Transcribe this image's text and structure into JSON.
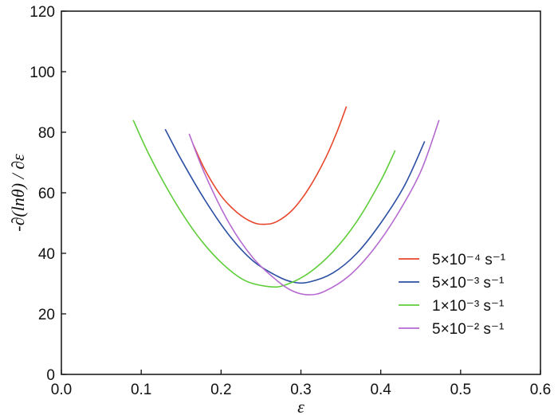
{
  "chart_data": {
    "type": "line",
    "title": "",
    "xlabel": "ε",
    "ylabel": "-∂(lnθ) / ∂ε",
    "xlim": [
      0.0,
      0.6
    ],
    "ylim": [
      0,
      120
    ],
    "xticks": [
      0.0,
      0.1,
      0.2,
      0.3,
      0.4,
      0.5,
      0.6
    ],
    "xtick_labels": [
      "0.0",
      "0.1",
      "0.2",
      "0.3",
      "0.4",
      "0.5",
      "0.6"
    ],
    "yticks": [
      0,
      20,
      40,
      60,
      80,
      100,
      120
    ],
    "ytick_labels": [
      "0",
      "20",
      "40",
      "60",
      "80",
      "100",
      "120"
    ],
    "grid": false,
    "legend_position": "right-middle",
    "series": [
      {
        "name": "5×10⁻⁴ s⁻¹",
        "color": "#e8452c",
        "x": [
          0.165,
          0.18,
          0.2,
          0.22,
          0.24,
          0.255,
          0.27,
          0.29,
          0.31,
          0.33,
          0.345,
          0.357
        ],
        "y": [
          76.0,
          67.5,
          59.0,
          53.5,
          50.2,
          49.6,
          50.5,
          54.5,
          61.5,
          71.0,
          80.0,
          88.5
        ]
      },
      {
        "name": "5×10⁻³ s⁻¹",
        "color": "#2b4fa2",
        "x": [
          0.13,
          0.15,
          0.18,
          0.21,
          0.24,
          0.27,
          0.29,
          0.31,
          0.34,
          0.37,
          0.4,
          0.43,
          0.455
        ],
        "y": [
          81.0,
          71.0,
          57.5,
          46.0,
          37.5,
          32.5,
          30.5,
          30.5,
          33.5,
          40.0,
          50.0,
          62.5,
          77.0
        ]
      },
      {
        "name": "1×10⁻³ s⁻¹",
        "color": "#5fcd3a",
        "x": [
          0.09,
          0.11,
          0.14,
          0.17,
          0.2,
          0.23,
          0.26,
          0.28,
          0.31,
          0.34,
          0.37,
          0.4,
          0.418
        ],
        "y": [
          84.0,
          72.5,
          58.0,
          46.0,
          37.0,
          31.0,
          29.0,
          29.5,
          33.5,
          40.5,
          50.5,
          64.0,
          74.0
        ]
      },
      {
        "name": "5×10⁻² s⁻¹",
        "color": "#b56ad0",
        "x": [
          0.16,
          0.18,
          0.21,
          0.24,
          0.27,
          0.29,
          0.31,
          0.33,
          0.36,
          0.39,
          0.42,
          0.45,
          0.473
        ],
        "y": [
          79.5,
          66.0,
          50.0,
          38.5,
          31.0,
          27.5,
          26.3,
          27.5,
          32.5,
          41.0,
          52.5,
          67.0,
          84.0
        ]
      }
    ]
  }
}
